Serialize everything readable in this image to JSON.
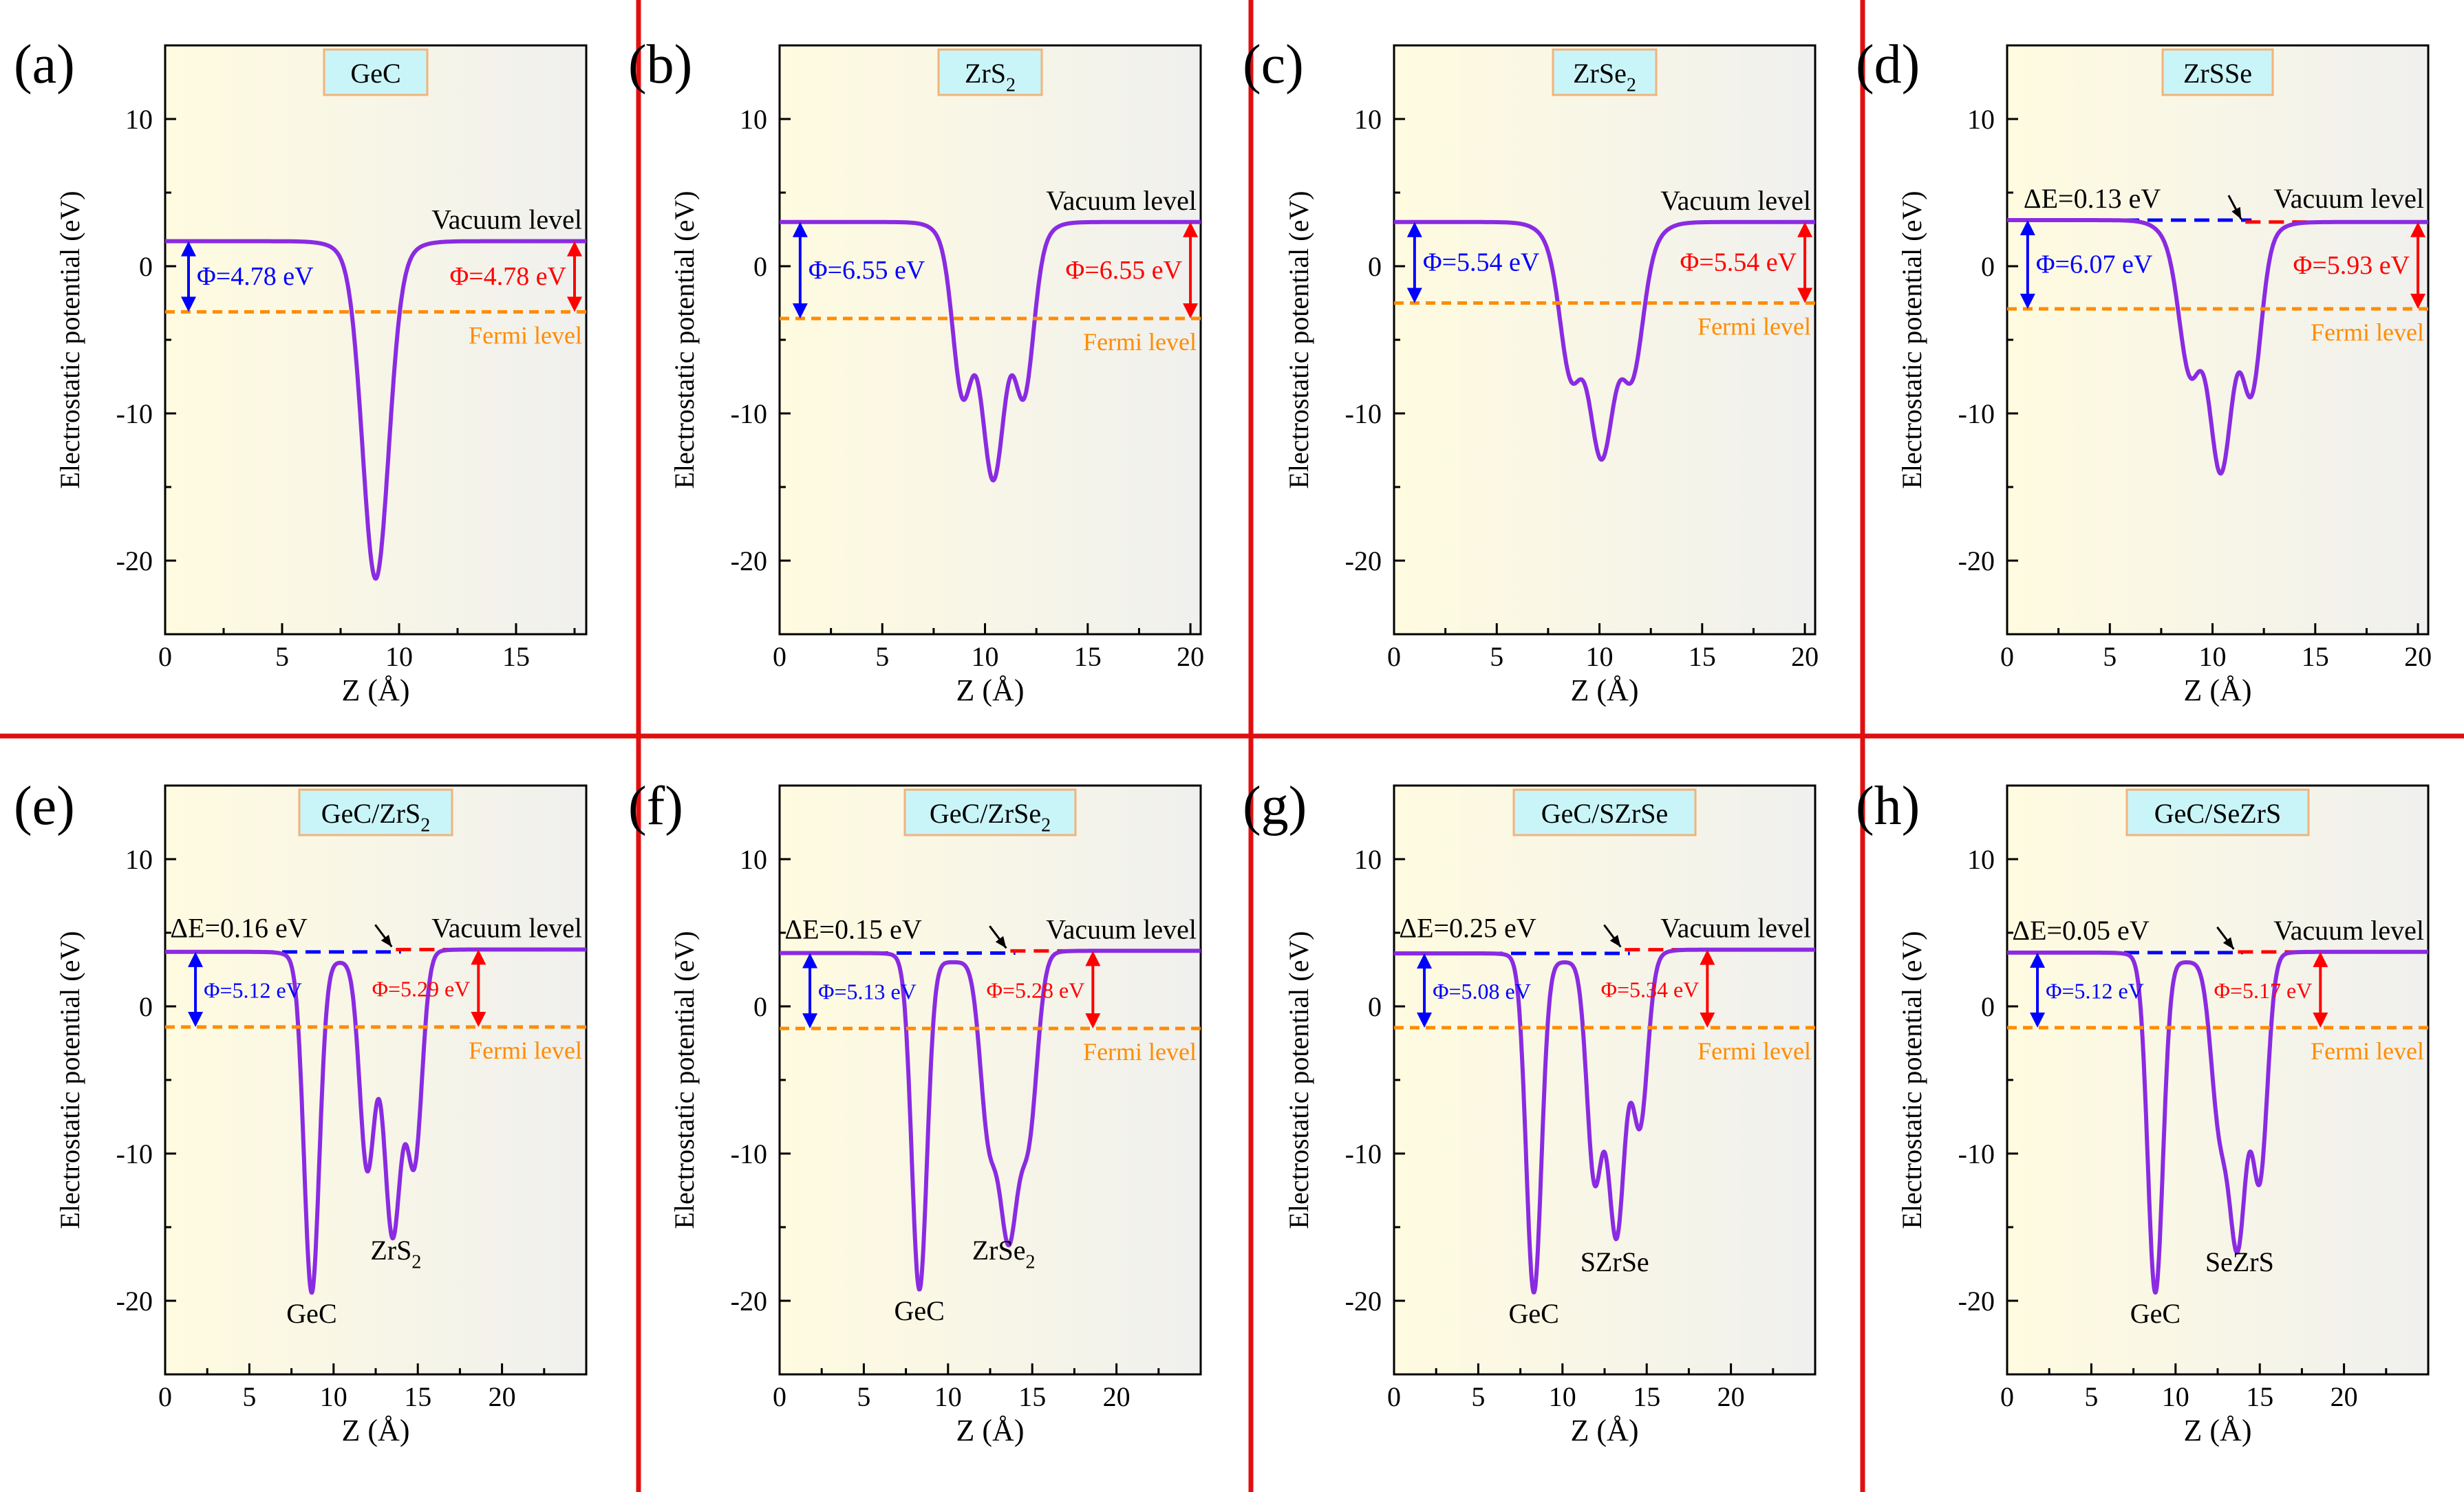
{
  "colors": {
    "curve": "#8a2be2",
    "fermi": "#ff8c00",
    "left_phi": "#0000ff",
    "right_phi": "#ff0000",
    "separator": "#e01010",
    "label_box_fill": "#c9f5f8",
    "label_box_stroke": "#f2b37a",
    "bg_left": "#fffbe0",
    "bg_right": "#f0f0ee"
  },
  "chart_data": [
    {
      "id": "a",
      "type": "line",
      "panel_label": "(a)",
      "material": "GeC",
      "xlabel": "Z (Å)",
      "ylabel": "Electrostatic potential (eV)",
      "xlim": [
        0,
        18
      ],
      "ylim": [
        -25,
        15
      ],
      "xticks": [
        "0",
        "5",
        "10",
        "15"
      ],
      "yticks": [
        "10",
        "0",
        "-10",
        "-20"
      ],
      "vacuum": 1.7,
      "fermi": -3.1,
      "center": 9.0,
      "edge_left": 7.7,
      "edge_right": 10.3,
      "edge_width": 0.45,
      "dips": [
        {
          "z": 9.0,
          "depth": 21.4,
          "width": 0.55
        }
      ],
      "delta_e": null,
      "vacuum_right": null,
      "vacuum_label": "Vacuum level",
      "fermi_label": "Fermi level",
      "phi_left": {
        "text": "Φ=4.78 eV",
        "z": 1.0
      },
      "phi_right": {
        "text": "Φ=4.78 eV",
        "z": 17.5
      },
      "annotations": []
    },
    {
      "id": "b",
      "type": "line",
      "panel_label": "(b)",
      "material": "ZrS",
      "material_sub": "2",
      "xlabel": "Z (Å)",
      "ylabel": "Electrostatic potential (eV)",
      "xlim": [
        0,
        20.5
      ],
      "ylim": [
        -25,
        15
      ],
      "xticks": [
        "0",
        "5",
        "10",
        "15",
        "20"
      ],
      "yticks": [
        "10",
        "0",
        "-10",
        "-20"
      ],
      "vacuum": 3.0,
      "fermi": -3.55,
      "center": 10.4,
      "edge_left": 8.1,
      "edge_right": 12.7,
      "edge_width": 0.4,
      "dips": [
        {
          "z": 8.9,
          "depth": 9.0,
          "width": 0.45
        },
        {
          "z": 10.4,
          "depth": 14.5,
          "width": 0.55
        },
        {
          "z": 11.9,
          "depth": 9.0,
          "width": 0.45
        }
      ],
      "delta_e": null,
      "vacuum_right": null,
      "vacuum_label": "Vacuum level",
      "fermi_label": "Fermi level",
      "phi_left": {
        "text": "Φ=6.55 eV",
        "z": 1.0
      },
      "phi_right": {
        "text": "Φ=6.55 eV",
        "z": 20.0
      },
      "annotations": []
    },
    {
      "id": "c",
      "type": "line",
      "panel_label": "(c)",
      "material": "ZrSe",
      "material_sub": "2",
      "xlabel": "Z (Å)",
      "ylabel": "Electrostatic potential (eV)",
      "xlim": [
        0,
        20.5
      ],
      "ylim": [
        -25,
        15
      ],
      "xticks": [
        "0",
        "5",
        "10",
        "15",
        "20"
      ],
      "yticks": [
        "10",
        "0",
        "-10",
        "-20"
      ],
      "vacuum": 3.0,
      "fermi": -2.5,
      "center": 10.1,
      "edge_left": 7.6,
      "edge_right": 12.6,
      "edge_width": 0.45,
      "dips": [
        {
          "z": 8.6,
          "depth": 7.5,
          "width": 0.5
        },
        {
          "z": 10.1,
          "depth": 13.0,
          "width": 0.6
        },
        {
          "z": 11.6,
          "depth": 7.5,
          "width": 0.5
        }
      ],
      "delta_e": null,
      "vacuum_right": null,
      "vacuum_label": "Vacuum level",
      "fermi_label": "Fermi level",
      "phi_left": {
        "text": "Φ=5.54 eV",
        "z": 1.0
      },
      "phi_right": {
        "text": "Φ=5.54 eV",
        "z": 20.0
      },
      "annotations": []
    },
    {
      "id": "d",
      "type": "line",
      "panel_label": "(d)",
      "material": "ZrSSe",
      "xlabel": "Z (Å)",
      "ylabel": "Electrostatic potential (eV)",
      "xlim": [
        0,
        20.5
      ],
      "ylim": [
        -25,
        15
      ],
      "xticks": [
        "0",
        "5",
        "10",
        "15",
        "20"
      ],
      "yticks": [
        "10",
        "0",
        "-10",
        "-20"
      ],
      "vacuum": 3.13,
      "vacuum_right": 3.0,
      "fermi": -2.9,
      "center": 10.4,
      "edge_left": 7.9,
      "edge_right": 12.6,
      "edge_width": 0.45,
      "dips": [
        {
          "z": 8.9,
          "depth": 7.5,
          "width": 0.5
        },
        {
          "z": 10.4,
          "depth": 14.0,
          "width": 0.55
        },
        {
          "z": 11.9,
          "depth": 9.0,
          "width": 0.45
        }
      ],
      "delta_e": {
        "text": "ΔE=0.13 eV",
        "z": 0.8
      },
      "vacuum_label": "Vacuum level",
      "fermi_label": "Fermi level",
      "phi_left": {
        "text": "Φ=6.07 eV",
        "z": 1.0
      },
      "phi_right": {
        "text": "Φ=5.93 eV",
        "z": 20.0
      },
      "annotations": []
    },
    {
      "id": "e",
      "type": "line",
      "panel_label": "(e)",
      "material": "GeC/ZrS",
      "material_sub": "2",
      "xlabel": "Z (Å)",
      "ylabel": "Electrostatic potential (eV)",
      "xlim": [
        0,
        25
      ],
      "ylim": [
        -25,
        15
      ],
      "xticks": [
        "0",
        "5",
        "10",
        "15",
        "20"
      ],
      "yticks": [
        "10",
        "0",
        "-10",
        "-20"
      ],
      "vacuum": 3.7,
      "vacuum_right": 3.86,
      "fermi": -1.4,
      "center": 12.5,
      "edge_left": 7.6,
      "edge_right": 15.5,
      "edge_width": 0.4,
      "hump": {
        "z": 10.5,
        "height": 3.0
      },
      "dips": [
        {
          "z": 8.7,
          "depth": 22.5,
          "width": 0.45
        },
        {
          "z": 12.0,
          "depth": 14.0,
          "width": 0.45
        },
        {
          "z": 13.5,
          "depth": 18.5,
          "width": 0.5
        },
        {
          "z": 14.8,
          "depth": 13.5,
          "width": 0.45
        }
      ],
      "delta_e": {
        "text": "ΔE=0.16 eV",
        "z": 0.3
      },
      "vacuum_label": "Vacuum level",
      "fermi_label": "Fermi level",
      "phi_left": {
        "text": "Φ=5.12 eV",
        "z": 1.8
      },
      "phi_right": {
        "text": "Φ=5.29 eV",
        "z": 18.6
      },
      "annotations": [
        {
          "text": "GeC",
          "z": 8.7,
          "y": -21.5
        },
        {
          "text": "ZrS",
          "sub": "2",
          "z": 13.7,
          "y": -17.2
        }
      ]
    },
    {
      "id": "f",
      "type": "line",
      "panel_label": "(f)",
      "material": "GeC/ZrSe",
      "material_sub": "2",
      "xlabel": "Z (Å)",
      "ylabel": "Electrostatic potential (eV)",
      "xlim": [
        0,
        25
      ],
      "ylim": [
        -25,
        15
      ],
      "xticks": [
        "0",
        "5",
        "10",
        "15",
        "20"
      ],
      "yticks": [
        "10",
        "0",
        "-10",
        "-20"
      ],
      "vacuum": 3.62,
      "vacuum_right": 3.77,
      "fermi": -1.5,
      "center": 12.5,
      "edge_left": 7.4,
      "edge_right": 15.7,
      "edge_width": 0.4,
      "hump": {
        "z": 10.2,
        "height": 3.0
      },
      "dips": [
        {
          "z": 8.3,
          "depth": 22.3,
          "width": 0.45
        },
        {
          "z": 12.4,
          "depth": 11.0,
          "width": 0.5
        },
        {
          "z": 13.6,
          "depth": 18.0,
          "width": 0.55
        },
        {
          "z": 14.8,
          "depth": 11.0,
          "width": 0.5
        }
      ],
      "delta_e": {
        "text": "ΔE=0.15 eV",
        "z": 0.3
      },
      "vacuum_label": "Vacuum level",
      "fermi_label": "Fermi level",
      "phi_left": {
        "text": "Φ=5.13 eV",
        "z": 1.8
      },
      "phi_right": {
        "text": "Φ=5.28 eV",
        "z": 18.6
      },
      "annotations": [
        {
          "text": "GeC",
          "z": 8.3,
          "y": -21.3
        },
        {
          "text": "ZrSe",
          "sub": "2",
          "z": 13.3,
          "y": -17.2
        }
      ]
    },
    {
      "id": "g",
      "type": "line",
      "panel_label": "(g)",
      "material": "GeC/SZrSe",
      "xlabel": "Z (Å)",
      "ylabel": "Electrostatic potential (eV)",
      "xlim": [
        0,
        25
      ],
      "ylim": [
        -25,
        15
      ],
      "xticks": [
        "0",
        "5",
        "10",
        "15",
        "20"
      ],
      "yticks": [
        "10",
        "0",
        "-10",
        "-20"
      ],
      "vacuum": 3.6,
      "vacuum_right": 3.85,
      "fermi": -1.45,
      "center": 12.5,
      "edge_left": 7.4,
      "edge_right": 15.6,
      "edge_width": 0.4,
      "hump": {
        "z": 10.3,
        "height": 3.0
      },
      "dips": [
        {
          "z": 8.3,
          "depth": 22.5,
          "width": 0.45
        },
        {
          "z": 11.9,
          "depth": 14.5,
          "width": 0.45
        },
        {
          "z": 13.2,
          "depth": 18.5,
          "width": 0.5
        },
        {
          "z": 14.6,
          "depth": 11.0,
          "width": 0.45
        }
      ],
      "delta_e": {
        "text": "ΔE=0.25 eV",
        "z": 0.3
      },
      "vacuum_label": "Vacuum level",
      "fermi_label": "Fermi level",
      "phi_left": {
        "text": "Φ=5.08 eV",
        "z": 1.8
      },
      "phi_right": {
        "text": "Φ=5.34 eV",
        "z": 18.6
      },
      "annotations": [
        {
          "text": "GeC",
          "z": 8.3,
          "y": -21.5
        },
        {
          "text": "SZrSe",
          "z": 13.1,
          "y": -18.0
        }
      ]
    },
    {
      "id": "h",
      "type": "line",
      "panel_label": "(h)",
      "material": "GeC/SeZrS",
      "xlabel": "Z (Å)",
      "ylabel": "Electrostatic potential (eV)",
      "xlim": [
        0,
        25
      ],
      "ylim": [
        -25,
        15
      ],
      "xticks": [
        "0",
        "5",
        "10",
        "15",
        "20"
      ],
      "yticks": [
        "10",
        "0",
        "-10",
        "-20"
      ],
      "vacuum": 3.65,
      "vacuum_right": 3.7,
      "fermi": -1.45,
      "center": 12.5,
      "edge_left": 7.8,
      "edge_right": 15.8,
      "edge_width": 0.4,
      "hump": {
        "z": 10.6,
        "height": 3.0
      },
      "dips": [
        {
          "z": 8.8,
          "depth": 22.5,
          "width": 0.45
        },
        {
          "z": 12.6,
          "depth": 10.5,
          "width": 0.5
        },
        {
          "z": 13.7,
          "depth": 18.5,
          "width": 0.5
        },
        {
          "z": 15.0,
          "depth": 14.5,
          "width": 0.45
        }
      ],
      "delta_e": {
        "text": "ΔE=0.05 eV",
        "z": 0.3
      },
      "vacuum_label": "Vacuum level",
      "fermi_label": "Fermi level",
      "phi_left": {
        "text": "Φ=5.12 eV",
        "z": 1.8
      },
      "phi_right": {
        "text": "Φ=5.17 eV",
        "z": 18.6
      },
      "annotations": [
        {
          "text": "GeC",
          "z": 8.8,
          "y": -21.5
        },
        {
          "text": "SeZrS",
          "z": 13.8,
          "y": -18.0
        }
      ]
    }
  ]
}
